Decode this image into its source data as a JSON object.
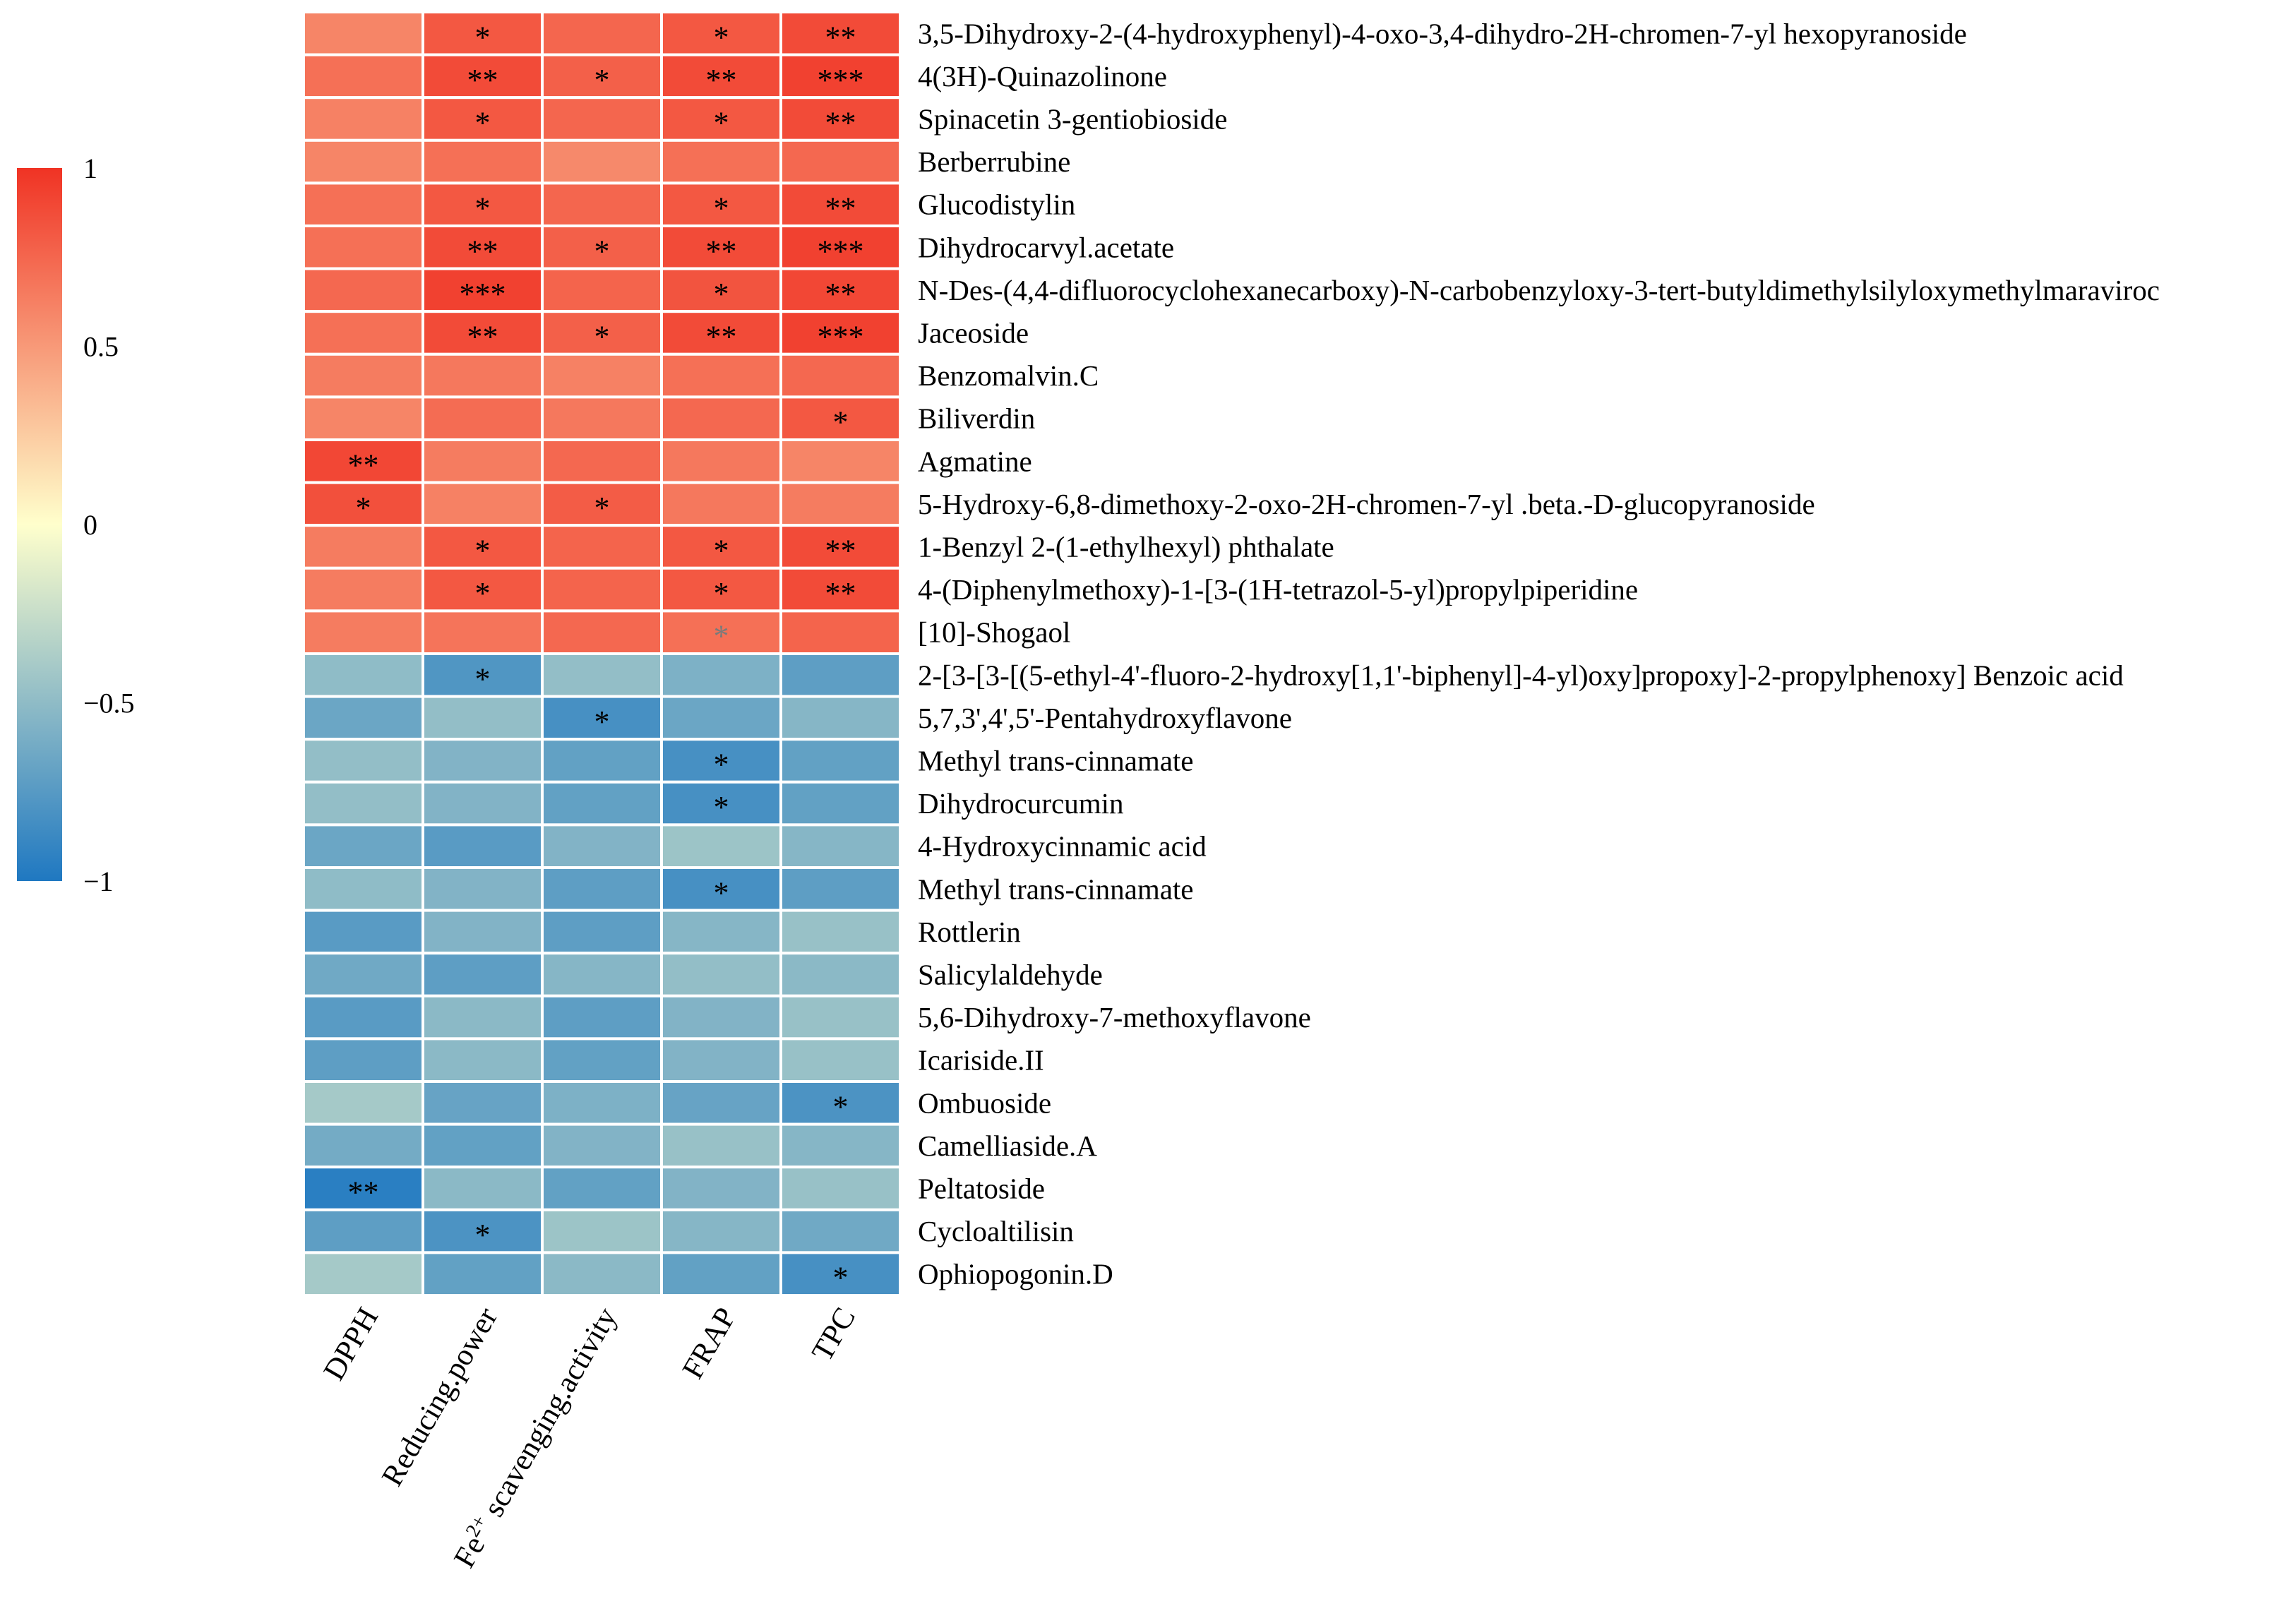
{
  "chart_data": {
    "type": "heatmap",
    "title": "",
    "xlabel": "",
    "ylabel": "",
    "colorbar": {
      "ticks": [
        1,
        0.5,
        0,
        -0.5,
        -1
      ],
      "tick_labels": [
        "1",
        "0.5",
        "0",
        "−0.5",
        "−1"
      ],
      "range": [
        -1,
        1
      ],
      "position": "left"
    },
    "colors": {
      "positive": "#f03324",
      "mid": "#ffffcc",
      "negative": "#1f78c1",
      "cell_border": "#ffffff"
    },
    "columns": [
      {
        "label": "DPPH",
        "parts": [
          {
            "t": "DPPH"
          }
        ]
      },
      {
        "label": "Reducing.power",
        "parts": [
          {
            "t": "Reducing.power"
          }
        ]
      },
      {
        "label": "Fe2+ scavenging.activity",
        "parts": [
          {
            "t": "Fe"
          },
          {
            "t": "2+",
            "sup": true
          },
          {
            "t": " scavenging.activity"
          }
        ]
      },
      {
        "label": "FRAP",
        "parts": [
          {
            "t": "FRAP"
          }
        ]
      },
      {
        "label": "TPC",
        "parts": [
          {
            "t": "TPC"
          }
        ]
      }
    ],
    "rows": [
      "3,5-Dihydroxy-2-(4-hydroxyphenyl)-4-oxo-3,4-dihydro-2H-chromen-7-yl hexopyranoside",
      "4(3H)-Quinazolinone",
      "Spinacetin 3-gentiobioside",
      "Berberrubine",
      "Glucodistylin",
      "Dihydrocarvyl.acetate",
      "N-Des-(4,4-difluorocyclohexanecarboxy)-N-carbobenzyloxy-3-tert-butyldimethylsilyloxymethylmaraviroc",
      "Jaceoside",
      "Benzomalvin.C",
      "Biliverdin",
      "Agmatine",
      "5-Hydroxy-6,8-dimethoxy-2-oxo-2H-chromen-7-yl .beta.-D-glucopyranoside",
      "1-Benzyl 2-(1-ethylhexyl) phthalate",
      "4-(Diphenylmethoxy)-1-[3-(1H-tetrazol-5-yl)propylpiperidine",
      "[10]-Shogaol",
      "2-[3-[3-[(5-ethyl-4'-fluoro-2-hydroxy[1,1'-biphenyl]-4-yl)oxy]propoxy]-2-propylphenoxy] Benzoic acid",
      "5,7,3',4',5'-Pentahydroxyflavone",
      "Methyl trans-cinnamate",
      "Dihydrocurcumin",
      "4-Hydroxycinnamic acid",
      "Methyl trans-cinnamate",
      "Rottlerin",
      "Salicylaldehyde",
      "5,6-Dihydroxy-7-methoxyflavone",
      "Icariside.II",
      "Ombuoside",
      "Camelliaside.A",
      "Peltatoside",
      "Cycloaltilisin",
      "Ophiopogonin.D"
    ],
    "values": [
      [
        0.6,
        0.82,
        0.75,
        0.82,
        0.88
      ],
      [
        0.7,
        0.88,
        0.78,
        0.88,
        0.93
      ],
      [
        0.62,
        0.82,
        0.75,
        0.82,
        0.88
      ],
      [
        0.6,
        0.7,
        0.58,
        0.7,
        0.74
      ],
      [
        0.7,
        0.82,
        0.75,
        0.82,
        0.88
      ],
      [
        0.7,
        0.88,
        0.78,
        0.88,
        0.93
      ],
      [
        0.74,
        0.93,
        0.76,
        0.84,
        0.9
      ],
      [
        0.7,
        0.88,
        0.78,
        0.88,
        0.93
      ],
      [
        0.64,
        0.66,
        0.62,
        0.7,
        0.74
      ],
      [
        0.6,
        0.72,
        0.66,
        0.74,
        0.82
      ],
      [
        0.9,
        0.64,
        0.74,
        0.66,
        0.6
      ],
      [
        0.86,
        0.62,
        0.8,
        0.66,
        0.64
      ],
      [
        0.64,
        0.82,
        0.76,
        0.82,
        0.88
      ],
      [
        0.64,
        0.82,
        0.76,
        0.82,
        0.88
      ],
      [
        0.64,
        0.68,
        0.74,
        0.7,
        0.76
      ],
      [
        -0.5,
        -0.78,
        -0.48,
        -0.58,
        -0.72
      ],
      [
        -0.66,
        -0.48,
        -0.82,
        -0.66,
        -0.54
      ],
      [
        -0.48,
        -0.56,
        -0.7,
        -0.82,
        -0.7
      ],
      [
        -0.48,
        -0.56,
        -0.7,
        -0.82,
        -0.7
      ],
      [
        -0.66,
        -0.74,
        -0.56,
        -0.44,
        -0.54
      ],
      [
        -0.5,
        -0.56,
        -0.72,
        -0.82,
        -0.72
      ],
      [
        -0.74,
        -0.56,
        -0.72,
        -0.54,
        -0.46
      ],
      [
        -0.64,
        -0.72,
        -0.54,
        -0.48,
        -0.52
      ],
      [
        -0.74,
        -0.52,
        -0.72,
        -0.56,
        -0.46
      ],
      [
        -0.72,
        -0.52,
        -0.7,
        -0.56,
        -0.46
      ],
      [
        -0.4,
        -0.68,
        -0.58,
        -0.68,
        -0.8
      ],
      [
        -0.62,
        -0.7,
        -0.56,
        -0.46,
        -0.54
      ],
      [
        -0.95,
        -0.52,
        -0.7,
        -0.56,
        -0.46
      ],
      [
        -0.72,
        -0.8,
        -0.44,
        -0.54,
        -0.64
      ],
      [
        -0.4,
        -0.7,
        -0.52,
        -0.7,
        -0.82
      ]
    ],
    "significance": [
      [
        "",
        "*",
        "",
        "*",
        "**"
      ],
      [
        "",
        "**",
        "*",
        "**",
        "***"
      ],
      [
        "",
        "*",
        "",
        "*",
        "**"
      ],
      [
        "",
        "",
        "",
        "",
        ""
      ],
      [
        "",
        "*",
        "",
        "*",
        "**"
      ],
      [
        "",
        "**",
        "*",
        "**",
        "***"
      ],
      [
        "",
        "***",
        "",
        "*",
        "**"
      ],
      [
        "",
        "**",
        "*",
        "**",
        "***"
      ],
      [
        "",
        "",
        "",
        "",
        ""
      ],
      [
        "",
        "",
        "",
        "",
        "*"
      ],
      [
        "**",
        "",
        "",
        "",
        ""
      ],
      [
        "*",
        "",
        "*",
        "",
        ""
      ],
      [
        "",
        "*",
        "",
        "*",
        "**"
      ],
      [
        "",
        "*",
        "",
        "*",
        "**"
      ],
      [
        "",
        "",
        "",
        "*",
        ""
      ],
      [
        "",
        "*",
        "",
        "",
        ""
      ],
      [
        "",
        "",
        "*",
        "",
        ""
      ],
      [
        "",
        "",
        "",
        "*",
        ""
      ],
      [
        "",
        "",
        "",
        "*",
        ""
      ],
      [
        "",
        "",
        "",
        "",
        ""
      ],
      [
        "",
        "",
        "",
        "*",
        ""
      ],
      [
        "",
        "",
        "",
        "",
        ""
      ],
      [
        "",
        "",
        "",
        "",
        ""
      ],
      [
        "",
        "",
        "",
        "",
        ""
      ],
      [
        "",
        "",
        "",
        "",
        ""
      ],
      [
        "",
        "",
        "",
        "",
        "*"
      ],
      [
        "",
        "",
        "",
        "",
        ""
      ],
      [
        "**",
        "",
        "",
        "",
        ""
      ],
      [
        "",
        "*",
        "",
        "",
        ""
      ],
      [
        "",
        "",
        "",
        "",
        "*"
      ]
    ],
    "faded_marks": [
      [
        14,
        3
      ]
    ]
  }
}
